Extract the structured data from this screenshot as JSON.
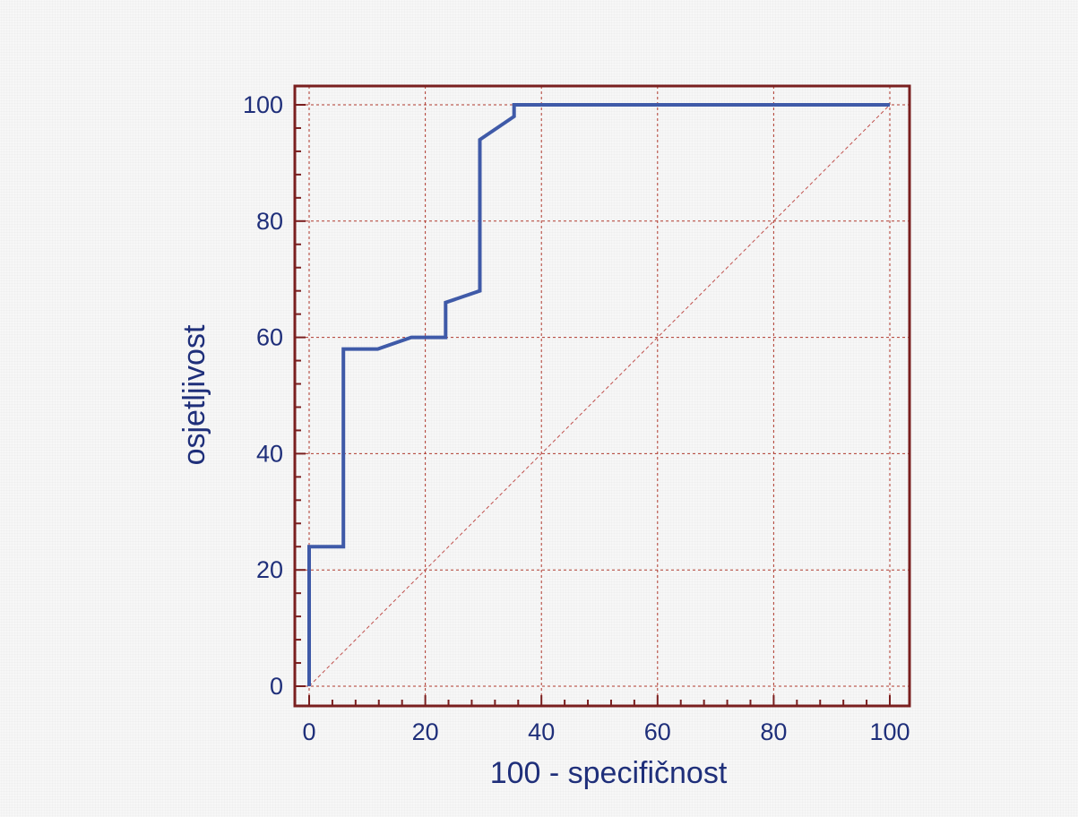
{
  "chart_data": {
    "type": "line",
    "title": "",
    "xlabel": "100 - specifičnost",
    "ylabel": "osjetljivost",
    "xlim": [
      0,
      100
    ],
    "ylim": [
      0,
      100
    ],
    "x_ticks": [
      0,
      20,
      40,
      60,
      80,
      100
    ],
    "y_ticks": [
      0,
      20,
      40,
      60,
      80,
      100
    ],
    "grid": true,
    "legend": "none",
    "colors": {
      "curve": "#3f5aa8",
      "frame": "#7a1f1f",
      "grid": "#b03a2e",
      "diagonal": "#c0504d",
      "text": "#1f2f7a"
    },
    "series": [
      {
        "x": [
          0,
          0,
          5.9,
          5.9,
          11.8,
          17.6,
          23.5,
          23.5,
          29.4,
          29.4,
          35.3,
          35.3,
          100
        ],
        "y": [
          0,
          24,
          24,
          58,
          58,
          60,
          60,
          66,
          68,
          94,
          98,
          100,
          100
        ]
      }
    ],
    "reference_line": {
      "x": [
        0,
        100
      ],
      "y": [
        0,
        100
      ]
    }
  }
}
